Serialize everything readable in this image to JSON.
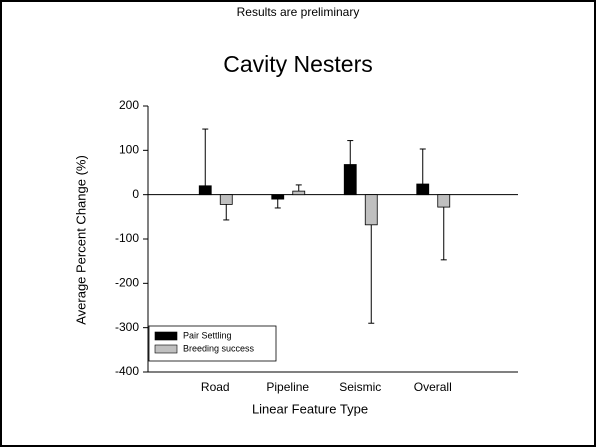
{
  "note": "Results are preliminary",
  "chart_data": {
    "type": "bar",
    "title": "Cavity Nesters",
    "xlabel": "Linear Feature Type",
    "ylabel": "Average Percent Change (%)",
    "categories": [
      "Road",
      "Pipeline",
      "Seismic",
      "Overall"
    ],
    "series": [
      {
        "name": "Pair Settling",
        "color": "#000000",
        "values": [
          20,
          -10,
          68,
          24
        ],
        "errors": [
          128,
          20,
          54,
          79
        ]
      },
      {
        "name": "Breeding success",
        "color": "#c0c0c0",
        "values": [
          -22,
          8,
          -68,
          -28
        ],
        "errors": [
          35,
          14,
          222,
          119
        ]
      }
    ],
    "ylim": [
      -400,
      200
    ],
    "yticks": [
      -400,
      -300,
      -200,
      -100,
      0,
      100,
      200
    ],
    "legend": "lower left",
    "grid": false
  }
}
